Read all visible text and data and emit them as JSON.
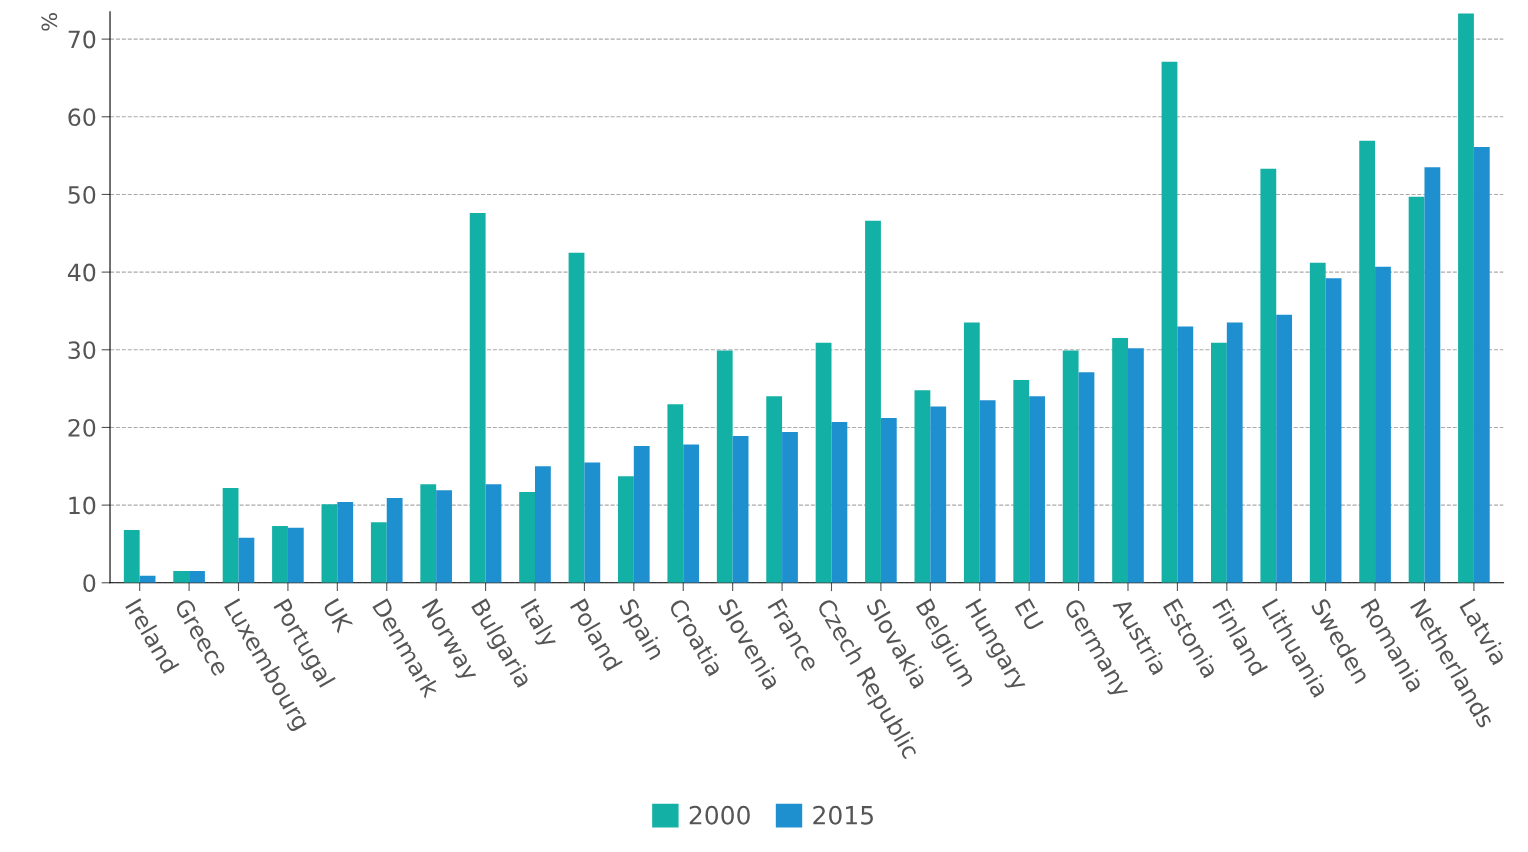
{
  "chart_data": {
    "type": "bar",
    "ylabel": "%",
    "categories": [
      "Ireland",
      "Greece",
      "Luxembourg",
      "Portugal",
      "UK",
      "Denmark",
      "Norway",
      "Bulgaria",
      "Italy",
      "Poland",
      "Spain",
      "Croatia",
      "Slovenia",
      "France",
      "Czech Republic",
      "Slovakia",
      "Belgium",
      "Hungary",
      "EU",
      "Germany",
      "Austria",
      "Estonia",
      "Finland",
      "Lithuania",
      "Sweden",
      "Romania",
      "Netherlands",
      "Latvia"
    ],
    "series": [
      {
        "name": "2000",
        "color": "#13b0a5",
        "values": [
          6.8,
          1.5,
          12.2,
          7.3,
          10.1,
          7.8,
          12.7,
          47.6,
          11.7,
          42.5,
          13.7,
          23.0,
          29.9,
          24.0,
          30.9,
          46.6,
          24.8,
          33.5,
          26.1,
          29.9,
          31.5,
          67.1,
          30.9,
          53.3,
          41.2,
          56.9,
          49.7,
          73.3
        ]
      },
      {
        "name": "2015",
        "color": "#1e90d0",
        "values": [
          0.9,
          1.5,
          5.8,
          7.1,
          10.4,
          10.9,
          11.9,
          12.7,
          15.0,
          15.5,
          17.6,
          17.8,
          18.9,
          19.4,
          20.7,
          21.2,
          22.7,
          23.5,
          24.0,
          27.1,
          30.2,
          33.0,
          33.5,
          34.5,
          39.2,
          40.7,
          53.5,
          56.1
        ]
      }
    ],
    "ylim": [
      0,
      73.5
    ],
    "yticks": [
      0,
      10,
      20,
      30,
      40,
      50,
      60,
      70
    ],
    "grid": "y",
    "legend": "bottom"
  }
}
